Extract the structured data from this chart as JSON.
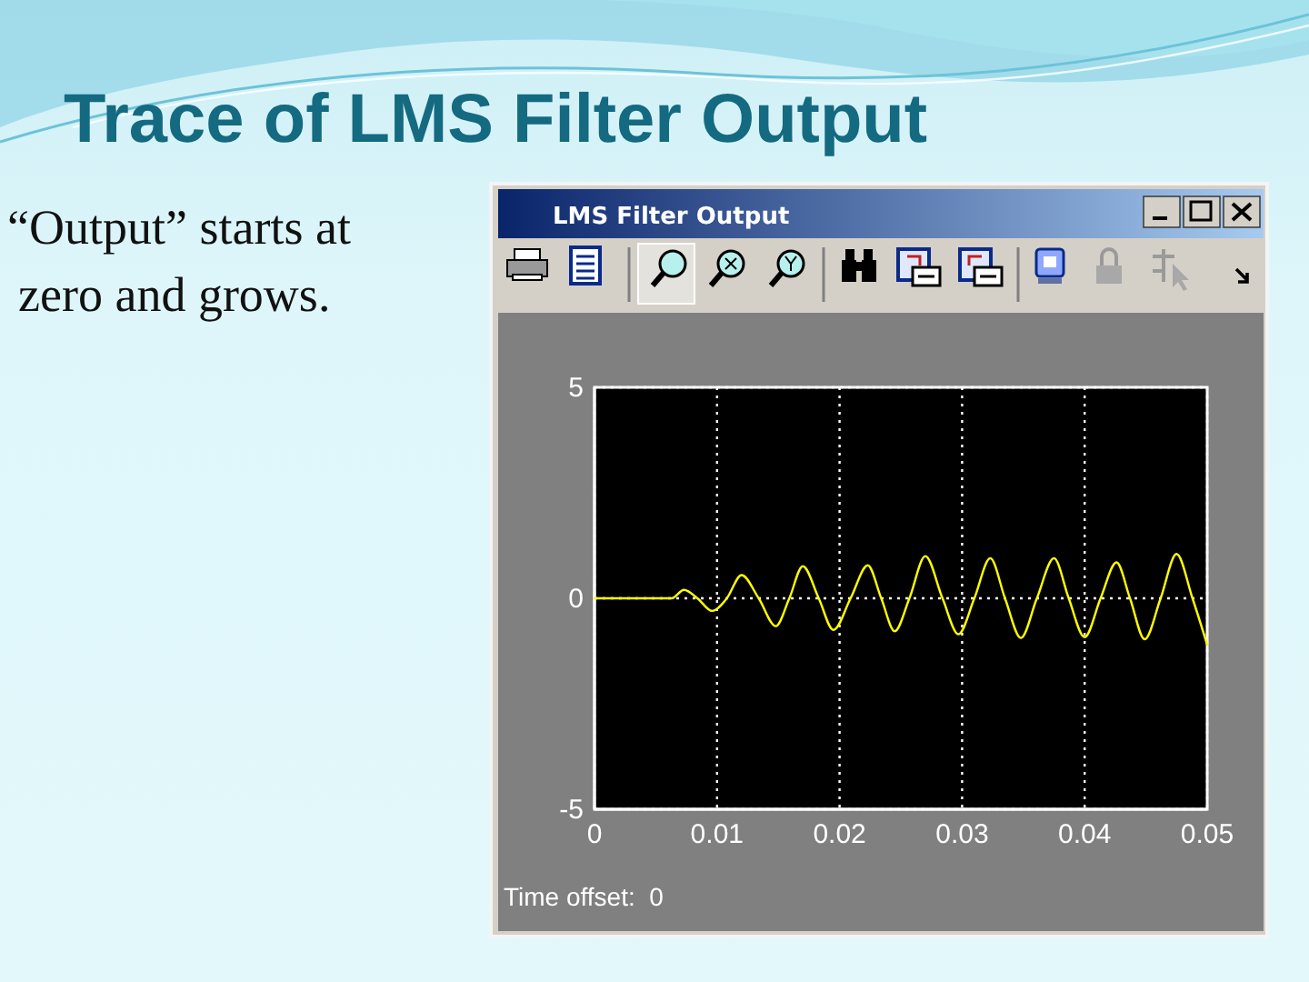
{
  "chart_data": {
    "type": "line",
    "title": "Trace of LMS Filter Output",
    "subtitle": "LMS Filter Output",
    "annotations": [
      "“Output” starts at zero and grows.",
      "Time offset:  0"
    ],
    "x": [
      0,
      0.0063,
      0.0073,
      0.0084,
      0.0096,
      0.0108,
      0.012,
      0.0134,
      0.0148,
      0.0159,
      0.017,
      0.0183,
      0.0195,
      0.0209,
      0.0223,
      0.0234,
      0.0245,
      0.0257,
      0.027,
      0.0284,
      0.0297,
      0.031,
      0.0323,
      0.0335,
      0.0348,
      0.0361,
      0.0375,
      0.0387,
      0.04,
      0.0413,
      0.0426,
      0.0437,
      0.0449,
      0.0462,
      0.0475,
      0.0488,
      0.05
    ],
    "series": [
      {
        "color": "#ffff00",
        "values": [
          0,
          0,
          0.2,
          0,
          -0.3,
          0,
          0.55,
          0,
          -0.66,
          0,
          0.76,
          0,
          -0.75,
          0,
          0.78,
          0,
          -0.78,
          0,
          1.0,
          0,
          -0.85,
          0,
          0.95,
          0,
          -0.94,
          0,
          0.95,
          0,
          -0.92,
          0,
          0.85,
          0,
          -0.97,
          0,
          1.05,
          0,
          -1.1
        ]
      }
    ],
    "xlim": [
      0,
      0.05
    ],
    "xticks": [
      0,
      0.01,
      0.02,
      0.03,
      0.04,
      0.05
    ],
    "ylim": [
      -5,
      5
    ],
    "yticks": [
      -5,
      0,
      5
    ],
    "grid": true,
    "line_style": "solid"
  }
}
